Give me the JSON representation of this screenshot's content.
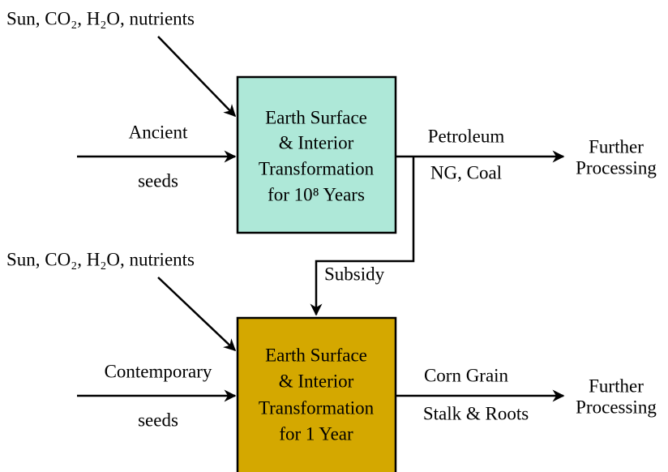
{
  "process_top": {
    "inputs_label": "Sun, CO₂, H₂O, nutrients",
    "input_above": "Ancient",
    "input_below": "seeds",
    "box": [
      "Earth Surface",
      "& Interior",
      "Transformation",
      "for 10⁸ Years"
    ],
    "output_above": "Petroleum",
    "output_below": "NG, Coal",
    "destination": [
      "Further",
      "Processing"
    ]
  },
  "subsidy": "Subsidy",
  "process_bottom": {
    "inputs_label": "Sun, CO₂, H₂O, nutrients",
    "input_above": "Contemporary",
    "input_below": "seeds",
    "box": [
      "Earth Surface",
      "& Interior",
      "Transformation",
      "for 1 Year"
    ],
    "output_above": "Corn Grain",
    "output_below": "Stalk & Roots",
    "destination": [
      "Further",
      "Processing"
    ]
  }
}
